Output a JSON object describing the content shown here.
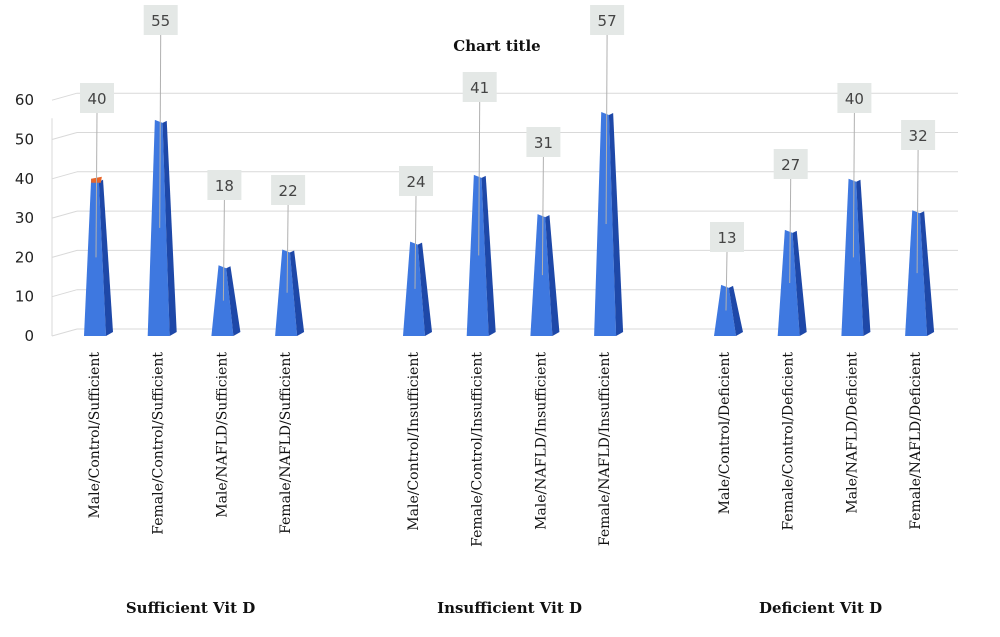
{
  "chart_data": {
    "type": "bar",
    "title": "Chart title",
    "xlabel": "",
    "ylabel": "",
    "ylim": [
      0,
      60
    ],
    "yticks": [
      0,
      10,
      20,
      30,
      40,
      50,
      60
    ],
    "grid": true,
    "style": "3d-pyramid",
    "bar_color": "#3e78e0",
    "bar_side_color": "#1e48a8",
    "accent_color": "#e8662a",
    "groups": [
      {
        "name": "Sufficient Vit D",
        "categories": [
          "Male/Control/Sufficient",
          "Female/Control/Sufficient",
          "Male/NAFLD/Sufficient",
          "Female/NAFLD/Sufficient"
        ],
        "values": [
          40,
          55,
          18,
          22
        ]
      },
      {
        "name": "Insufficient Vit D",
        "categories": [
          "Male/Control/Insufficient",
          "Female/Control/Insufficient",
          "Male/NAFLD/Insufficient",
          "Female/NAFLD/Insufficient"
        ],
        "values": [
          24,
          41,
          31,
          57
        ]
      },
      {
        "name": "Deficient Vit D",
        "categories": [
          "Male/Control/Deficient",
          "Female/Control/Deficient",
          "Male/NAFLD/Deficient",
          "Female/NAFLD/Deficient"
        ],
        "values": [
          13,
          27,
          40,
          32
        ]
      }
    ]
  }
}
